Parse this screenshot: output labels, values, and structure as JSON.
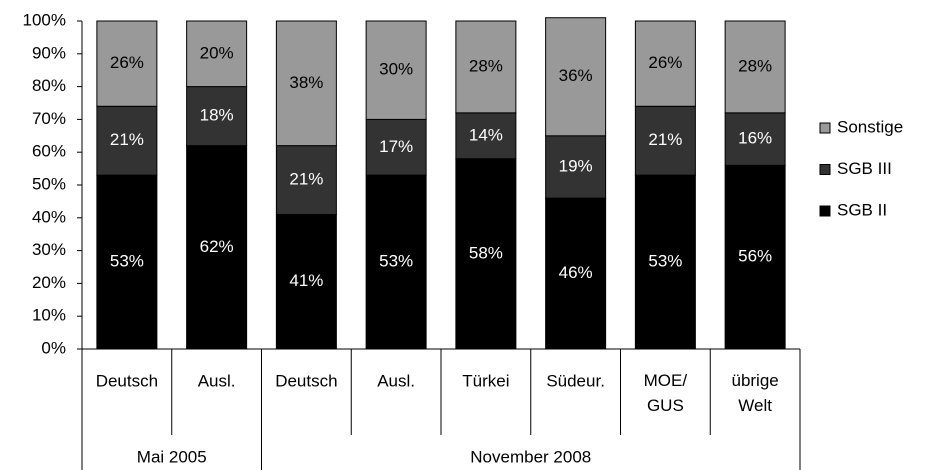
{
  "chart_data": {
    "type": "stacked_bar",
    "categories": [
      "Deutsch",
      "Ausl.",
      "Deutsch",
      "Ausl.",
      "Türkei",
      "Südeur.",
      "MOE/ GUS",
      "übrige Welt"
    ],
    "groups": [
      {
        "label": "Mai 2005",
        "count": 2
      },
      {
        "label": "November 2008",
        "count": 6
      }
    ],
    "series": [
      {
        "name": "SGB II",
        "color": "#000000",
        "label_color": "#ffffff",
        "values": [
          53,
          62,
          41,
          53,
          58,
          46,
          53,
          56
        ],
        "value_labels": [
          "53%",
          "62%",
          "41%",
          "53%",
          "58%",
          "46%",
          "53%",
          "56%"
        ]
      },
      {
        "name": "SGB III",
        "color": "#333333",
        "label_color": "#ffffff",
        "values": [
          21,
          18,
          21,
          17,
          14,
          19,
          21,
          16
        ],
        "value_labels": [
          "21%",
          "18%",
          "21%",
          "17%",
          "14%",
          "19%",
          "21%",
          "16%"
        ]
      },
      {
        "name": "Sonstige",
        "color": "#999999",
        "label_color": "#000000",
        "values": [
          26,
          20,
          38,
          30,
          28,
          36,
          26,
          28
        ],
        "value_labels": [
          "26%",
          "20%",
          "38%",
          "30%",
          "28%",
          "36%",
          "26%",
          "28%"
        ]
      }
    ],
    "ylim": [
      0,
      100
    ],
    "yticks": [
      {
        "value": 0,
        "label": "0%"
      },
      {
        "value": 10,
        "label": "10%"
      },
      {
        "value": 20,
        "label": "20%"
      },
      {
        "value": 30,
        "label": "30%"
      },
      {
        "value": 40,
        "label": "40%"
      },
      {
        "value": 50,
        "label": "50%"
      },
      {
        "value": 60,
        "label": "60%"
      },
      {
        "value": 70,
        "label": "70%"
      },
      {
        "value": 80,
        "label": "80%"
      },
      {
        "value": 90,
        "label": "90%"
      },
      {
        "value": 100,
        "label": "100%"
      }
    ],
    "legend": "right"
  }
}
